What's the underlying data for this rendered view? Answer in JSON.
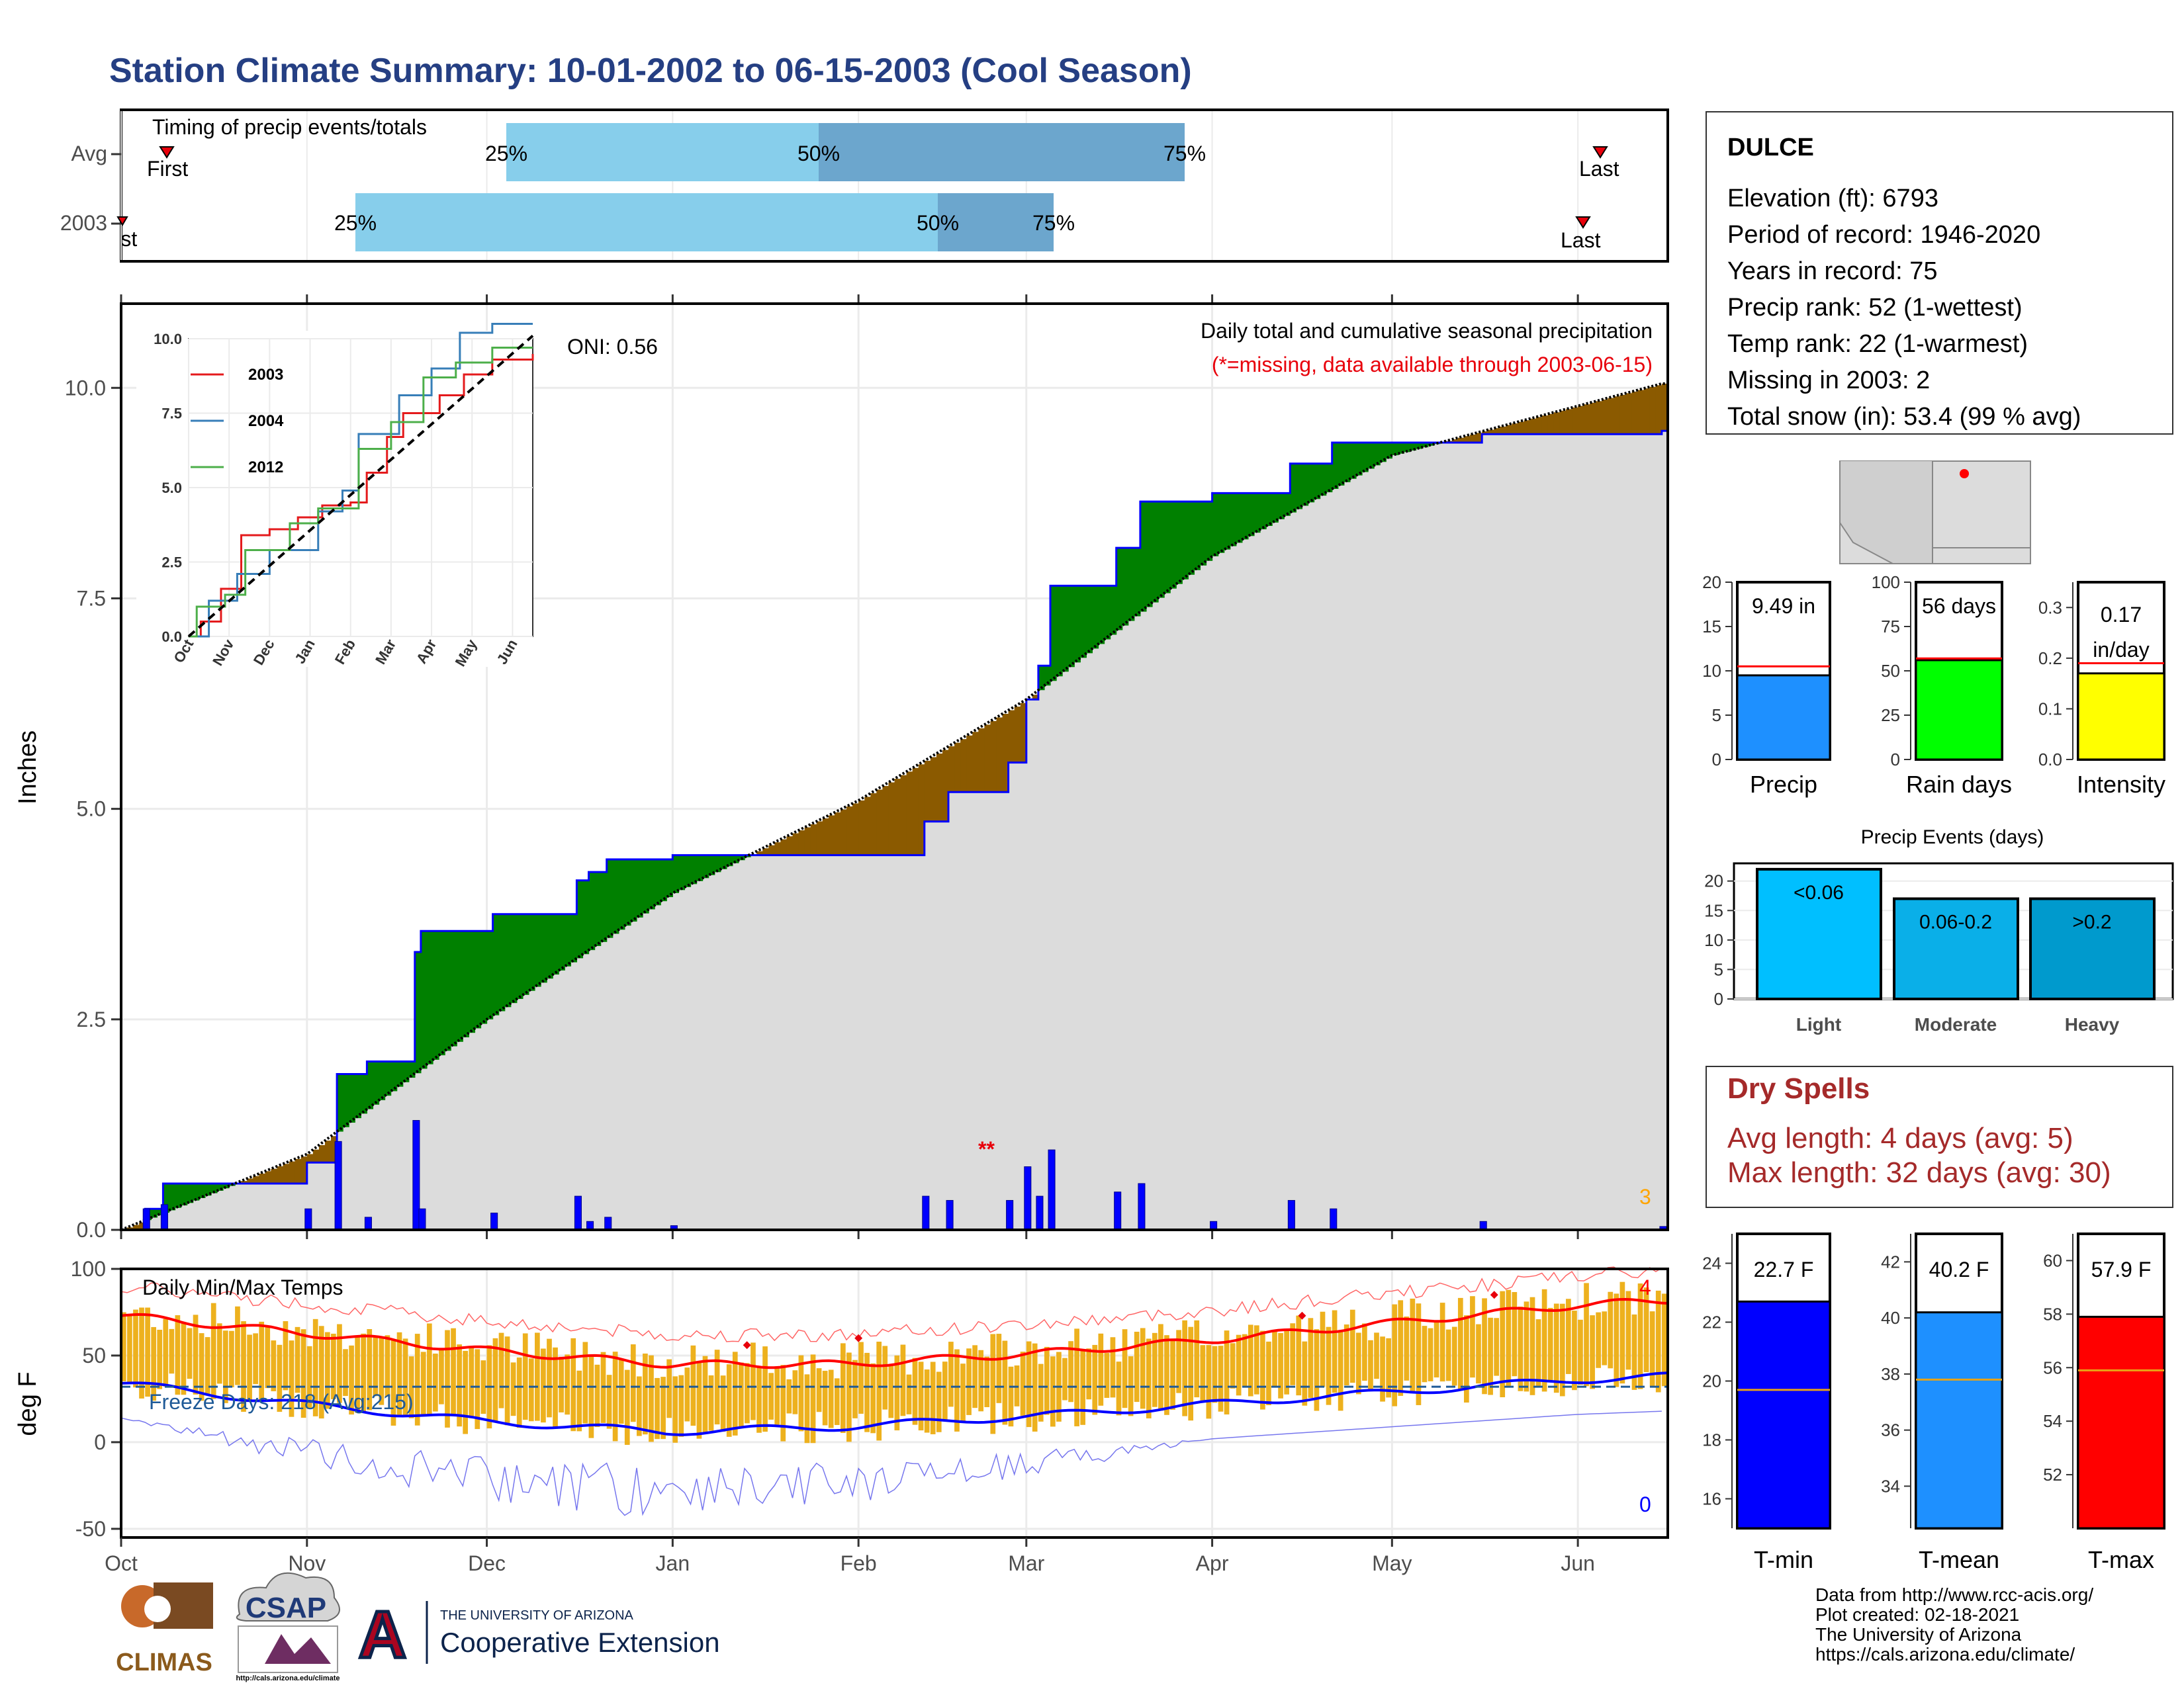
{
  "page": {
    "title": "Station Climate Summary: 10-01-2002 to 06-15-2003 (Cool Season)",
    "title_color": "#253F83"
  },
  "timing": {
    "label": "Timing of precip events/totals",
    "rows": [
      {
        "name": "Avg",
        "first": "First",
        "last": "Last",
        "p25": "25%",
        "p50": "50%",
        "p75": "75%"
      },
      {
        "name": "2003",
        "first": "First",
        "last": "Last",
        "p25": "25%",
        "p50": "50%",
        "p75": "75%"
      }
    ]
  },
  "station": {
    "name": "DULCE",
    "lines": [
      "Elevation (ft): 6793",
      "Period of record: 1946-2020",
      "Years in record: 75",
      "Precip rank: 52 (1-wettest)",
      "Temp rank: 22 (1-warmest)",
      "Missing in 2003: 2",
      "Total snow (in): 53.4 (99 % avg)"
    ]
  },
  "main_chart": {
    "ylabel": "Inches",
    "oni": "ONI: 0.56",
    "caption1": "Daily total and cumulative seasonal precipitation",
    "caption2": "(*=missing, data available through 2003-06-15)",
    "caption2_color": "#E8000B",
    "missing_marker": "**",
    "corner_count": "3",
    "corner_color": "#FFA500"
  },
  "inset": {
    "legend": [
      "2003",
      "2004",
      "2012"
    ]
  },
  "temp_chart": {
    "ylabel": "deg F",
    "label": "Daily Min/Max Temps",
    "freeze": "Freeze Days: 218 (Avg:215)",
    "count_hot": "4",
    "count_cold": "0"
  },
  "mini_bars": {
    "precip": {
      "label": "Precip",
      "value_text": "9.49 in"
    },
    "rain": {
      "label": "Rain days",
      "value_text": "56 days"
    },
    "intensity": {
      "label": "Intensity",
      "value_text1": "0.17",
      "value_text2": "in/day"
    }
  },
  "events": {
    "title": "Precip Events (days)",
    "labels": [
      "Light",
      "Moderate",
      "Heavy"
    ],
    "bar_texts": [
      "<0.06",
      "0.06-0.2",
      ">0.2"
    ]
  },
  "dry": {
    "title": "Dry Spells",
    "avg": "Avg length: 4 days (avg: 5)",
    "max": "Max length: 32 days (avg: 30)",
    "color": "#A52A2A"
  },
  "temps_bars": {
    "tmin": {
      "label": "T-min",
      "value_text": "22.7 F"
    },
    "tmean": {
      "label": "T-mean",
      "value_text": "40.2 F"
    },
    "tmax": {
      "label": "T-max",
      "value_text": "57.9 F"
    }
  },
  "logos": {
    "climas": "CLIMAS",
    "csap": "CSAP",
    "csap_url": "http://cals.arizona.edu/climate",
    "ua_small": "THE UNIVERSITY OF ARIZONA",
    "ua_big": "Cooperative Extension",
    "ua_letter": "A"
  },
  "footer": [
    "Data from http://www.rcc-acis.org/",
    "Plot created: 02-18-2021",
    "The University of Arizona",
    "https://cals.arizona.edu/climate/"
  ],
  "colors": {
    "green": "#008000",
    "brown": "#8B5A00",
    "gray": "#DCDCDC",
    "blue": "#0000FF",
    "lightblue": "#87CEEB",
    "midblue": "#6CA6CD",
    "orange": "#EDB11E",
    "red": "#FF0000"
  },
  "chart_data": [
    {
      "type": "area",
      "title": "Daily total and cumulative seasonal precipitation",
      "ylabel": "Inches",
      "ylim": [
        0,
        11
      ],
      "x_ticks": [
        "Oct",
        "Nov",
        "Dec",
        "Jan",
        "Feb",
        "Mar",
        "Apr",
        "May",
        "Jun"
      ],
      "y_ticks": [
        0.0,
        2.5,
        5.0,
        7.5,
        10.0
      ],
      "series": [
        {
          "name": "2003",
          "points": [
            [
              "2002-10-01",
              0
            ],
            [
              "2002-10-05",
              0.25
            ],
            [
              "2002-10-08",
              0.55
            ],
            [
              "2002-10-31",
              0.55
            ],
            [
              "2002-11-01",
              0.8
            ],
            [
              "2002-11-06",
              1.85
            ],
            [
              "2002-11-11",
              2.0
            ],
            [
              "2002-11-19",
              3.3
            ],
            [
              "2002-11-20",
              3.55
            ],
            [
              "2002-12-01",
              3.55
            ],
            [
              "2002-12-02",
              3.75
            ],
            [
              "2002-12-16",
              4.15
            ],
            [
              "2002-12-18",
              4.25
            ],
            [
              "2002-12-21",
              4.4
            ],
            [
              "2003-01-01",
              4.45
            ],
            [
              "2003-01-10",
              4.45
            ],
            [
              "2003-01-31",
              4.45
            ],
            [
              "2003-02-12",
              4.85
            ],
            [
              "2003-02-16",
              5.2
            ],
            [
              "2003-02-26",
              5.55
            ],
            [
              "2003-03-01",
              6.3
            ],
            [
              "2003-03-03",
              6.7
            ],
            [
              "2003-03-05",
              7.65
            ],
            [
              "2003-03-16",
              8.1
            ],
            [
              "2003-03-20",
              8.65
            ],
            [
              "2003-04-01",
              8.75
            ],
            [
              "2003-04-14",
              9.1
            ],
            [
              "2003-04-21",
              9.35
            ],
            [
              "2003-05-01",
              9.35
            ],
            [
              "2003-05-16",
              9.45
            ],
            [
              "2003-06-15",
              9.49
            ]
          ]
        },
        {
          "name": "Average",
          "points": [
            [
              "2002-10-01",
              0
            ],
            [
              "2002-11-01",
              0.9
            ],
            [
              "2002-12-01",
              2.5
            ],
            [
              "2003-01-01",
              4.0
            ],
            [
              "2003-02-01",
              5.1
            ],
            [
              "2003-03-01",
              6.3
            ],
            [
              "2003-04-01",
              8.0
            ],
            [
              "2003-05-01",
              9.2
            ],
            [
              "2003-06-15",
              10.05
            ]
          ]
        }
      ]
    },
    {
      "type": "line",
      "title": "",
      "xlabel": "",
      "ylabel": "",
      "ylim": [
        0,
        10
      ],
      "x_ticks": [
        "Oct",
        "Nov",
        "Dec",
        "Jan",
        "Feb",
        "Mar",
        "Apr",
        "May",
        "Jun"
      ],
      "y_ticks": [
        0.0,
        2.5,
        5.0,
        7.5,
        10.0
      ],
      "series": [
        {
          "name": "2003",
          "color": "#E41A1C",
          "points": [
            [
              0,
              0
            ],
            [
              0.3,
              0.5
            ],
            [
              0.8,
              1.6
            ],
            [
              1.3,
              3.4
            ],
            [
              2.0,
              3.6
            ],
            [
              2.7,
              4.0
            ],
            [
              3.3,
              4.4
            ],
            [
              4.0,
              4.5
            ],
            [
              4.4,
              5.5
            ],
            [
              4.9,
              6.7
            ],
            [
              5.3,
              7.5
            ],
            [
              6.2,
              8.1
            ],
            [
              6.8,
              8.8
            ],
            [
              7.5,
              9.3
            ],
            [
              8.5,
              9.49
            ]
          ]
        },
        {
          "name": "2004",
          "color": "#377EB8",
          "points": [
            [
              0,
              0
            ],
            [
              0.5,
              1.2
            ],
            [
              1.2,
              2.1
            ],
            [
              2.0,
              2.9
            ],
            [
              3.2,
              4.2
            ],
            [
              3.8,
              4.9
            ],
            [
              4.2,
              6.8
            ],
            [
              5.2,
              8.1
            ],
            [
              6.0,
              9.0
            ],
            [
              6.7,
              10.2
            ],
            [
              7.5,
              10.5
            ],
            [
              8.5,
              10.5
            ]
          ]
        },
        {
          "name": "2012",
          "color": "#4DAF4A",
          "points": [
            [
              0,
              0
            ],
            [
              0.2,
              1.0
            ],
            [
              0.9,
              1.4
            ],
            [
              1.4,
              2.9
            ],
            [
              2.5,
              3.8
            ],
            [
              3.2,
              4.3
            ],
            [
              4.2,
              6.3
            ],
            [
              5.0,
              7.2
            ],
            [
              5.8,
              8.7
            ],
            [
              6.6,
              9.2
            ],
            [
              7.5,
              9.7
            ],
            [
              8.5,
              9.7
            ]
          ]
        },
        {
          "name": "Average",
          "color": "#000000",
          "points": [
            [
              0,
              0
            ],
            [
              8.5,
              10.1
            ]
          ]
        }
      ]
    },
    {
      "type": "bar",
      "title": "Daily Min/Max Temps",
      "ylabel": "deg F",
      "ylim": [
        -55,
        100
      ],
      "y_ticks": [
        -50,
        0,
        50,
        100
      ],
      "x_ticks": [
        "Oct",
        "Nov",
        "Dec",
        "Jan",
        "Feb",
        "Mar",
        "Apr",
        "May",
        "Jun"
      ],
      "series": [
        {
          "name": "Avg max",
          "points": [
            [
              0,
              73
            ],
            [
              1,
              63
            ],
            [
              2,
              53
            ],
            [
              3,
              45
            ],
            [
              4,
              45
            ],
            [
              5,
              51
            ],
            [
              6,
              59
            ],
            [
              7,
              69
            ],
            [
              8,
              79
            ],
            [
              8.5,
              82
            ]
          ]
        },
        {
          "name": "Avg min",
          "points": [
            [
              0,
              34
            ],
            [
              1,
              22
            ],
            [
              2,
              12
            ],
            [
              3,
              6
            ],
            [
              4,
              9
            ],
            [
              5,
              15
            ],
            [
              6,
              22
            ],
            [
              7,
              29
            ],
            [
              8,
              36
            ],
            [
              8.5,
              38
            ]
          ]
        },
        {
          "name": "Freeze threshold",
          "points": [
            [
              0,
              32
            ],
            [
              8.5,
              32
            ]
          ]
        }
      ]
    },
    {
      "type": "bar",
      "title": "",
      "categories": [
        "Precip",
        "Rain days",
        "Intensity"
      ],
      "series": [
        {
          "name": "2003",
          "values": [
            9.49,
            56,
            0.17
          ]
        },
        {
          "name": "Average",
          "values": [
            10.5,
            57,
            0.19
          ]
        }
      ],
      "ylim": [
        [
          0,
          20
        ],
        [
          0,
          100
        ],
        [
          0,
          0.35
        ]
      ]
    },
    {
      "type": "bar",
      "title": "Precip Events (days)",
      "categories": [
        "Light",
        "Moderate",
        "Heavy"
      ],
      "values": [
        22,
        17,
        17
      ],
      "bar_labels": [
        "<0.06",
        "0.06-0.2",
        ">0.2"
      ],
      "ylim": [
        0,
        23
      ],
      "y_ticks": [
        0,
        5,
        10,
        15,
        20
      ]
    },
    {
      "type": "bar",
      "title": "",
      "categories": [
        "T-min",
        "T-mean",
        "T-max"
      ],
      "series": [
        {
          "name": "2003",
          "values": [
            22.7,
            40.2,
            57.9
          ]
        },
        {
          "name": "Average",
          "values": [
            19.7,
            37.8,
            55.9
          ]
        }
      ],
      "ylim": [
        [
          15,
          25
        ],
        [
          32.5,
          43
        ],
        [
          50,
          61
        ]
      ]
    }
  ]
}
